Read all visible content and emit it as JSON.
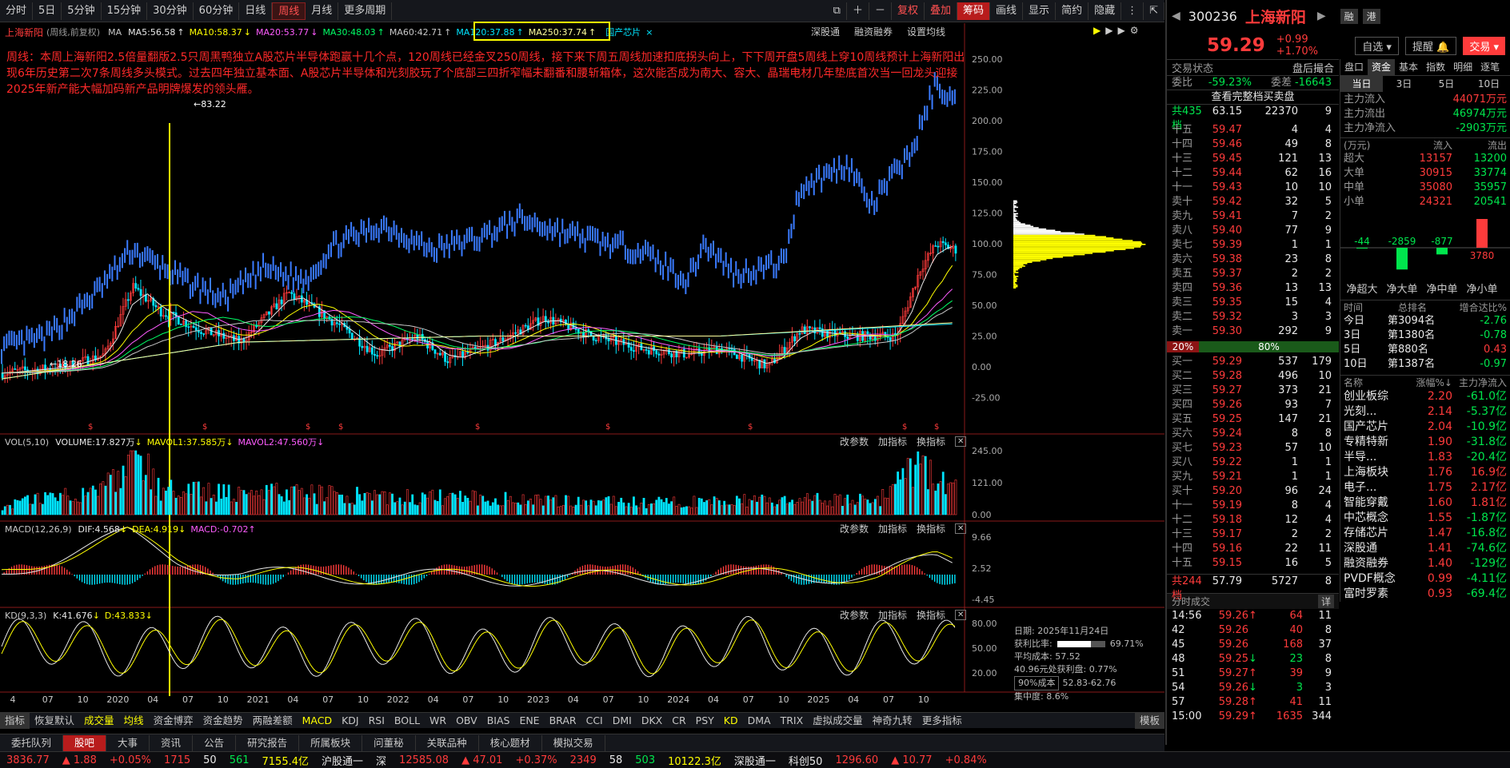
{
  "toolbar": {
    "periods": [
      "分时",
      "5日",
      "5分钟",
      "15分钟",
      "30分钟",
      "60分钟",
      "日线",
      "周线",
      "月线",
      "更多周期"
    ],
    "right": [
      "复权",
      "叠加",
      "筹码",
      "画线",
      "显示",
      "简约",
      "隐藏"
    ]
  },
  "header": {
    "code": "300236",
    "name": "上海新阳",
    "price": "59.29",
    "change": "+0.99",
    "pct": "+1.70%",
    "zixuan": "自选",
    "tixing": "提醒",
    "trade": "交易",
    "rong": "融",
    "gang": "港"
  },
  "chart": {
    "title": "上海新阳",
    "subtitle": "(周线,前复权)",
    "ma_items": [
      {
        "label": "MA",
        "color": "#c8c8c8"
      },
      {
        "label": "MA5:56.58",
        "color": "#e8e8e8"
      },
      {
        "label": "MA10:58.37",
        "color": "#ffff00"
      },
      {
        "label": "MA20:53.77",
        "color": "#ff5cff"
      },
      {
        "label": "MA30:48.03",
        "color": "#00ff66"
      },
      {
        "label": "MA60:42.71",
        "color": "#c8c8c8"
      },
      {
        "label": "MA120:37.88",
        "color": "#00e5ff"
      },
      {
        "label": "MA250:37.74",
        "color": "#ffff9c"
      }
    ],
    "tag": "国产芯片",
    "links": [
      "深股通",
      "融资融券",
      "设置均线"
    ],
    "note": "周线：本周上海新阳2.5倍量翻版2.5只周黑鸭独立A股芯片半导体跑赢十几个点，120周线已经金叉250周线，接下来下周五周线加速扣底拐头向上，下下周开盘5周线上穿10周线预计上海新阳出现6年历史第二次7条周线多头模式。过去四年独立基本面、A股芯片半导体和光刻胶玩了个底部三四折窄幅未翻番和腰斩箱体，这次能否成为南大、容大、晶瑞电材几年垫底首次当一回龙头迎接2025年新产能大幅加码新产品明牌爆发的领头雁。",
    "high_mark": "83.22",
    "low_mark": "18.26",
    "y_labels": [
      "250.00",
      "225.00",
      "200.00",
      "175.00",
      "150.00",
      "125.00",
      "100.00",
      "75.00",
      "50.00",
      "25.00",
      "0.00",
      "-25.00"
    ],
    "x_labels": [
      "4",
      "07",
      "10",
      "2020",
      "04",
      "07",
      "10",
      "2021",
      "04",
      "07",
      "10",
      "2022",
      "04",
      "07",
      "10",
      "2023",
      "04",
      "07",
      "10",
      "2024",
      "04",
      "07",
      "10",
      "2025",
      "04",
      "07",
      "10"
    ]
  },
  "vol": {
    "title": "VOL(5,10)",
    "items": [
      "VOLUME:17.827万",
      "MAVOL1:37.585万",
      "MAVOL2:47.560万"
    ],
    "y": [
      "245.00",
      "121.00",
      "0.00"
    ]
  },
  "macd": {
    "title": "MACD(12,26,9)",
    "items": [
      "DIF:4.568",
      "DEA:4.919",
      "MACD:-0.702"
    ],
    "y": [
      "9.66",
      "2.52",
      "-4.45"
    ]
  },
  "kd": {
    "title": "KD(9,3,3)",
    "items": [
      "K:41.676",
      "D:43.833"
    ],
    "y": [
      "80.00",
      "50.00",
      "20.00"
    ]
  },
  "panel_links": [
    "改参数",
    "加指标",
    "换指标"
  ],
  "chip": {
    "date": "日期: 2025年11月24日",
    "profit_label": "获利比率:",
    "profit": "69.71%",
    "avg": "平均成本: 57.52",
    "line1": "40.96元处获利盘: 0.77%",
    "cost_sel": "90%成本",
    "range": "52.83-62.76",
    "conc": "集中度: 8.6%"
  },
  "indicators": [
    "指标",
    "恢复默认",
    "成交量",
    "均线",
    "资金博弈",
    "资金趋势",
    "两融差额",
    "MACD",
    "KDJ",
    "RSI",
    "BOLL",
    "WR",
    "OBV",
    "BIAS",
    "ENE",
    "BRAR",
    "CCI",
    "DMI",
    "DKX",
    "CR",
    "PSY",
    "KD",
    "DMA",
    "TRIX",
    "虚拟成交量",
    "神奇九转",
    "更多指标",
    "模板"
  ],
  "bottom_tabs": [
    "委托队列",
    "股吧",
    "大事",
    "资讯",
    "公告",
    "研究报告",
    "所属板块",
    "问董秘",
    "关联品种",
    "核心题材",
    "模拟交易"
  ],
  "status": [
    {
      "t": "3836.77",
      "c": "#ff3b3b"
    },
    {
      "t": "▲ 1.88",
      "c": "#ff3b3b"
    },
    {
      "t": "+0.05%",
      "c": "#ff3b3b"
    },
    {
      "t": "1715",
      "c": "#ff3b3b"
    },
    {
      "t": "50",
      "c": "#e8e8e8"
    },
    {
      "t": "561",
      "c": "#00e64d"
    },
    {
      "t": "7155.4亿",
      "c": "#ffff00"
    },
    {
      "t": "沪股通一",
      "c": "#e8e8e8"
    },
    {
      "t": "深",
      "c": "#e8e8e8"
    },
    {
      "t": "12585.08",
      "c": "#ff3b3b"
    },
    {
      "t": "▲ 47.01",
      "c": "#ff3b3b"
    },
    {
      "t": "+0.37%",
      "c": "#ff3b3b"
    },
    {
      "t": "2349",
      "c": "#ff3b3b"
    },
    {
      "t": "58",
      "c": "#e8e8e8"
    },
    {
      "t": "503",
      "c": "#00e64d"
    },
    {
      "t": "10122.3亿",
      "c": "#ffff00"
    },
    {
      "t": "深股通一",
      "c": "#e8e8e8"
    },
    {
      "t": "科创50",
      "c": "#e8e8e8"
    },
    {
      "t": "1296.60",
      "c": "#ff3b3b"
    },
    {
      "t": "▲ 10.77",
      "c": "#ff3b3b"
    },
    {
      "t": "+0.84%",
      "c": "#ff3b3b"
    }
  ],
  "side": {
    "tabs": [
      "交易状态",
      "盘后撮合",
      "盘口",
      "资金",
      "基本",
      "指数",
      "明细",
      "逐笔"
    ],
    "weibi": {
      "label": "委比",
      "value": "-59.23%",
      "wc_label": "委差",
      "wc": "-16643"
    },
    "full_btn": "查看完整档买卖盘",
    "sell_total": {
      "label": "共435档",
      "price": "63.15",
      "vol": "22370",
      "n": "9"
    },
    "sells": [
      [
        "十五",
        "59.47",
        "4",
        "4"
      ],
      [
        "十四",
        "59.46",
        "49",
        "8"
      ],
      [
        "十三",
        "59.45",
        "121",
        "13"
      ],
      [
        "十二",
        "59.44",
        "62",
        "16"
      ],
      [
        "十一",
        "59.43",
        "10",
        "10"
      ],
      [
        "卖十",
        "59.42",
        "32",
        "5"
      ],
      [
        "卖九",
        "59.41",
        "7",
        "2"
      ],
      [
        "卖八",
        "59.40",
        "77",
        "9"
      ],
      [
        "卖七",
        "59.39",
        "1",
        "1"
      ],
      [
        "卖六",
        "59.38",
        "23",
        "8"
      ],
      [
        "卖五",
        "59.37",
        "2",
        "2"
      ],
      [
        "卖四",
        "59.36",
        "13",
        "13"
      ],
      [
        "卖三",
        "59.35",
        "15",
        "4"
      ],
      [
        "卖二",
        "59.32",
        "3",
        "3"
      ],
      [
        "卖一",
        "59.30",
        "292",
        "9"
      ]
    ],
    "ratio": {
      "a": "20%",
      "b": "80%"
    },
    "buys": [
      [
        "买一",
        "59.29",
        "537",
        "179"
      ],
      [
        "买二",
        "59.28",
        "496",
        "10"
      ],
      [
        "买三",
        "59.27",
        "373",
        "21"
      ],
      [
        "买四",
        "59.26",
        "93",
        "7"
      ],
      [
        "买五",
        "59.25",
        "147",
        "21"
      ],
      [
        "买六",
        "59.24",
        "8",
        "8"
      ],
      [
        "买七",
        "59.23",
        "57",
        "10"
      ],
      [
        "买八",
        "59.22",
        "1",
        "1"
      ],
      [
        "买九",
        "59.21",
        "1",
        "1"
      ],
      [
        "买十",
        "59.20",
        "96",
        "24"
      ],
      [
        "十一",
        "59.19",
        "8",
        "4"
      ],
      [
        "十二",
        "59.18",
        "12",
        "4"
      ],
      [
        "十三",
        "59.17",
        "2",
        "2"
      ],
      [
        "十四",
        "59.16",
        "22",
        "11"
      ],
      [
        "十五",
        "59.15",
        "16",
        "5"
      ]
    ],
    "buy_total": {
      "label": "共244档",
      "price": "57.79",
      "vol": "5727",
      "n": "8"
    },
    "fs_title": "分时成交",
    "fs_detail": "详",
    "fs": [
      [
        "14:56",
        "59.26",
        "↑",
        "64",
        "11",
        "r"
      ],
      [
        "42",
        "59.26",
        "",
        "40",
        "8",
        "r"
      ],
      [
        "45",
        "59.26",
        "",
        "168",
        "37",
        "r"
      ],
      [
        "48",
        "59.25",
        "↓",
        "23",
        "8",
        "g"
      ],
      [
        "51",
        "59.27",
        "↑",
        "39",
        "9",
        "r"
      ],
      [
        "54",
        "59.26",
        "↓",
        "3",
        "3",
        "g"
      ],
      [
        "57",
        "59.28",
        "↑",
        "41",
        "11",
        "r"
      ],
      [
        "15:00",
        "59.29",
        "↑",
        "1635",
        "344",
        "r"
      ]
    ],
    "zj_periods": [
      "当日",
      "3日",
      "5日",
      "10日"
    ],
    "zj_flow": [
      [
        "主力流入",
        "44071万元",
        "#ff3b3b"
      ],
      [
        "主力流出",
        "46974万元",
        "#00e64d"
      ],
      [
        "主力净流入",
        "-2903万元",
        "#00e64d"
      ]
    ],
    "zj_head": [
      "(万元)",
      "流入",
      "流出"
    ],
    "zj_rows": [
      [
        "超大",
        "13157",
        "13200"
      ],
      [
        "大单",
        "30915",
        "33774"
      ],
      [
        "中单",
        "35080",
        "35957"
      ],
      [
        "小单",
        "24321",
        "20541"
      ]
    ],
    "zj_bars": {
      "values": [
        -44,
        -2859,
        -877,
        3780
      ],
      "labels": [
        "-44",
        "-2859",
        "-877",
        "3780"
      ],
      "names": [
        "净超大",
        "净大单",
        "净中单",
        "净小单"
      ]
    },
    "rank_head": [
      "时间",
      "总排名",
      "增合达比%"
    ],
    "ranks": [
      [
        "今日",
        "第3094名",
        "-2.76"
      ],
      [
        "3日",
        "第1380名",
        "-0.78"
      ],
      [
        "5日",
        "第880名",
        "0.43"
      ],
      [
        "10日",
        "第1387名",
        "-0.97"
      ]
    ],
    "sector_head": [
      "名称",
      "涨幅%↓",
      "主力净流入"
    ],
    "sectors": [
      [
        "创业板综",
        "2.20",
        "-61.0亿"
      ],
      [
        "光刻...",
        "2.14",
        "-5.37亿"
      ],
      [
        "国产芯片",
        "2.04",
        "-10.9亿"
      ],
      [
        "专精特新",
        "1.90",
        "-31.8亿"
      ],
      [
        "半导...",
        "1.83",
        "-20.4亿"
      ],
      [
        "上海板块",
        "1.76",
        "16.9亿"
      ],
      [
        "电子...",
        "1.75",
        "2.17亿"
      ],
      [
        "智能穿戴",
        "1.60",
        "1.81亿"
      ],
      [
        "中芯概念",
        "1.55",
        "-1.87亿"
      ],
      [
        "存储芯片",
        "1.47",
        "-16.8亿"
      ],
      [
        "深股通",
        "1.41",
        "-74.6亿"
      ],
      [
        "融资融券",
        "1.40",
        "-129亿"
      ],
      [
        "PVDF概念",
        "0.99",
        "-4.11亿"
      ],
      [
        "富时罗素",
        "0.93",
        "-69.4亿"
      ]
    ]
  }
}
